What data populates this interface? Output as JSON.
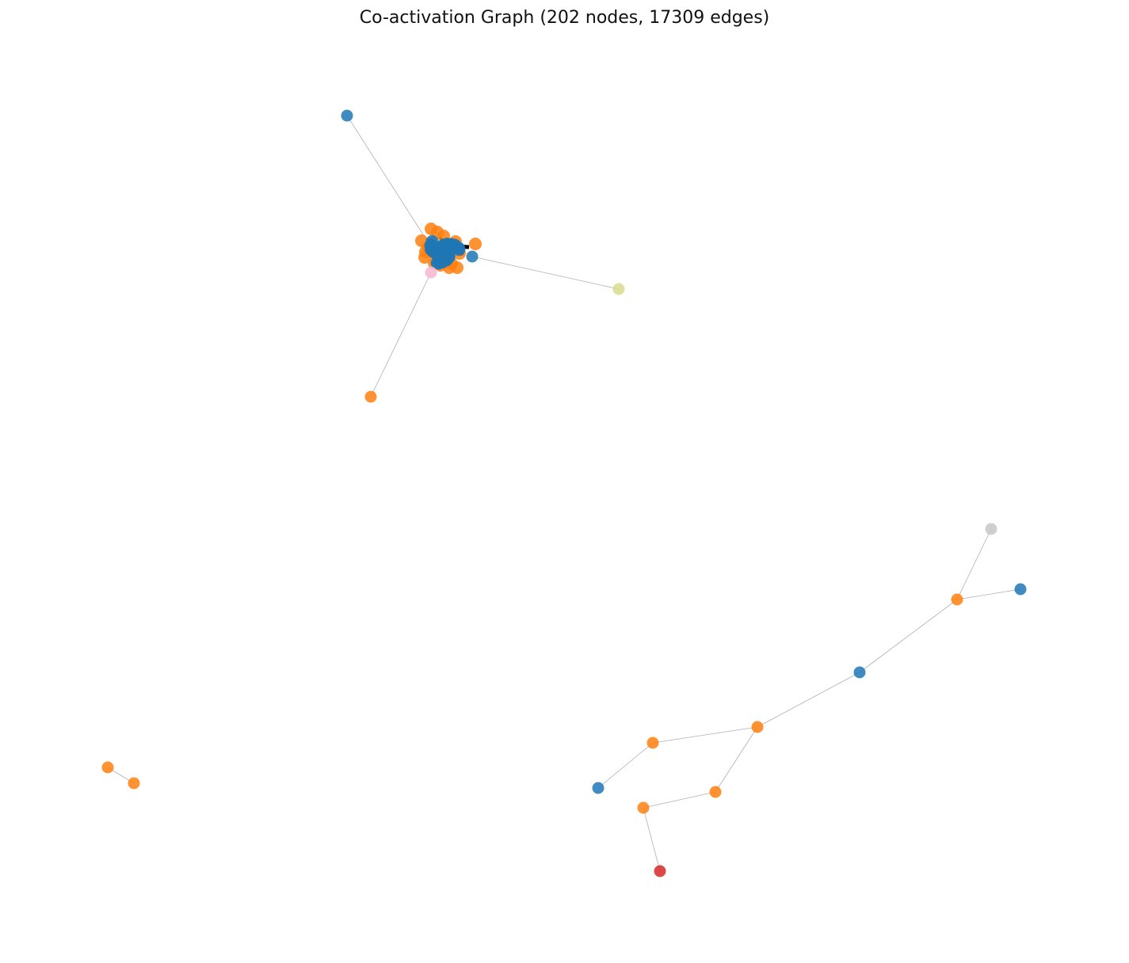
{
  "title": "Co-activation Graph (202 nodes, 17309 edges)",
  "palette": {
    "blue": "#1f77b4",
    "orange": "#ff7f0e",
    "pink": "#f7b6d2",
    "olive": "#dbdb8d",
    "gray": "#c7c7c7",
    "red": "#d62728",
    "edge": "#b0b0b0",
    "dense_edge": "#000000"
  }
}
